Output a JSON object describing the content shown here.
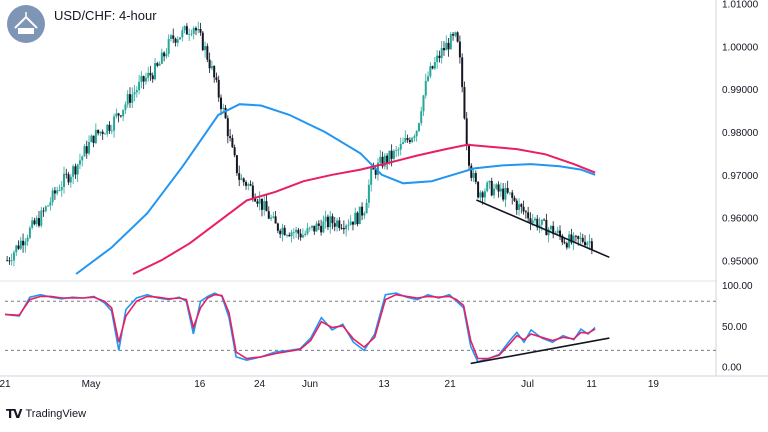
{
  "header": {
    "title": "USD/CHF: 4-hour"
  },
  "footer": {
    "brand": "TradingView"
  },
  "colors": {
    "up_candle": "#26a69a",
    "down_candle": "#131722",
    "ma_blue": "#2196f3",
    "ma_red": "#e91e63",
    "rsi_blue": "#2196f3",
    "rsi_red": "#e91e63"
  },
  "chart_data": [
    {
      "type": "candlestick",
      "title": "USD/CHF: 4-hour",
      "y_tick_labels": [
        "1.01000",
        "1.00000",
        "0.99000",
        "0.98000",
        "0.97000",
        "0.96000",
        "0.95000"
      ],
      "y_ticks": [
        1.01,
        1.0,
        0.99,
        0.98,
        0.97,
        0.96,
        0.95
      ],
      "ylim": [
        0.9468,
        1.0104
      ],
      "x_tick_labels": [
        "21",
        "May",
        "16",
        "24",
        "Jun",
        "13",
        "21",
        "Jul",
        "11",
        "19"
      ],
      "xlim": [
        0,
        100
      ],
      "x_ticks": [
        0,
        12.1,
        27.4,
        35.8,
        42.9,
        53.3,
        62.6,
        73.5,
        82.5,
        91.2
      ],
      "price_path": [
        [
          0.3,
          0.95
        ],
        [
          2.5,
          0.955
        ],
        [
          5,
          0.96
        ],
        [
          7.5,
          0.967
        ],
        [
          10,
          0.972
        ],
        [
          12.5,
          0.979
        ],
        [
          15,
          0.982
        ],
        [
          17.5,
          0.988
        ],
        [
          19.5,
          0.992
        ],
        [
          21.5,
          0.995
        ],
        [
          23.5,
          1.002
        ],
        [
          25,
          1.003
        ],
        [
          26.5,
          1.005
        ],
        [
          28,
          1.0
        ],
        [
          29,
          0.995
        ],
        [
          30,
          0.989
        ],
        [
          31,
          0.983
        ],
        [
          32,
          0.975
        ],
        [
          33,
          0.969
        ],
        [
          34,
          0.968
        ],
        [
          35,
          0.966
        ],
        [
          36.5,
          0.962
        ],
        [
          38,
          0.958
        ],
        [
          40,
          0.957
        ],
        [
          42,
          0.956
        ],
        [
          44,
          0.958
        ],
        [
          46,
          0.959
        ],
        [
          48,
          0.959
        ],
        [
          49.5,
          0.96
        ],
        [
          50.5,
          0.962
        ],
        [
          51.5,
          0.97
        ],
        [
          53,
          0.973
        ],
        [
          55,
          0.975
        ],
        [
          56.5,
          0.978
        ],
        [
          58,
          0.981
        ],
        [
          58.5,
          0.986
        ],
        [
          59.5,
          0.993
        ],
        [
          60.5,
          0.996
        ],
        [
          61.5,
          0.999
        ],
        [
          62.5,
          1.001
        ],
        [
          63.5,
          1.002
        ],
        [
          64,
          0.996
        ],
        [
          64.5,
          0.987
        ],
        [
          65,
          0.977
        ],
        [
          65.5,
          0.971
        ],
        [
          66.5,
          0.966
        ],
        [
          68,
          0.967
        ],
        [
          69.5,
          0.966
        ],
        [
          71,
          0.965
        ],
        [
          72.5,
          0.962
        ],
        [
          74,
          0.96
        ],
        [
          75.5,
          0.958
        ],
        [
          77,
          0.957
        ],
        [
          78.5,
          0.955
        ],
        [
          80,
          0.954
        ],
        [
          81.5,
          0.955
        ],
        [
          82.7,
          0.954
        ]
      ],
      "series": [
        {
          "color": "#2196f3",
          "points": [
            [
              10,
              0.9468
            ],
            [
              15,
              0.953
            ],
            [
              20,
              0.961
            ],
            [
              25,
              0.972
            ],
            [
              30,
              0.984
            ],
            [
              33,
              0.9865
            ],
            [
              36,
              0.9862
            ],
            [
              40,
              0.984
            ],
            [
              45,
              0.98
            ],
            [
              50,
              0.975
            ],
            [
              53,
              0.97
            ],
            [
              56,
              0.968
            ],
            [
              60,
              0.9685
            ],
            [
              63,
              0.97
            ],
            [
              66,
              0.9715
            ],
            [
              70,
              0.9722
            ],
            [
              74,
              0.9725
            ],
            [
              78,
              0.972
            ],
            [
              81,
              0.9712
            ],
            [
              83,
              0.97
            ]
          ]
        },
        {
          "color": "#e91e63",
          "points": [
            [
              18,
              0.9468
            ],
            [
              22,
              0.95
            ],
            [
              26,
              0.954
            ],
            [
              30,
              0.959
            ],
            [
              34,
              0.964
            ],
            [
              38,
              0.966
            ],
            [
              42,
              0.9685
            ],
            [
              46,
              0.97
            ],
            [
              50,
              0.9712
            ],
            [
              54,
              0.9728
            ],
            [
              58,
              0.9745
            ],
            [
              62,
              0.976
            ],
            [
              65,
              0.977
            ],
            [
              68,
              0.9766
            ],
            [
              72,
              0.976
            ],
            [
              76,
              0.9748
            ],
            [
              80,
              0.9725
            ],
            [
              83,
              0.9705
            ]
          ]
        }
      ],
      "trendline": {
        "points": [
          [
            66.3,
            0.9641
          ],
          [
            85.0,
            0.9507
          ]
        ],
        "color": "#131722"
      }
    },
    {
      "type": "line",
      "title": "",
      "y_tick_labels": [
        "100.00",
        "50.00",
        "0.00"
      ],
      "y_ticks": [
        100,
        50,
        0
      ],
      "ylim": [
        -4,
        106
      ],
      "dashed_levels": [
        80,
        20
      ],
      "xlim": [
        0,
        100
      ],
      "series": [
        {
          "color": "#2196f3",
          "points": [
            [
              0,
              64
            ],
            [
              2,
              62
            ],
            [
              3.5,
              85
            ],
            [
              5,
              88
            ],
            [
              6.5,
              85
            ],
            [
              8,
              83
            ],
            [
              9.5,
              85
            ],
            [
              11,
              84
            ],
            [
              12.5,
              86
            ],
            [
              14,
              78
            ],
            [
              15,
              68
            ],
            [
              16,
              20
            ],
            [
              17,
              70
            ],
            [
              18.5,
              84
            ],
            [
              20,
              88
            ],
            [
              21.5,
              84
            ],
            [
              23,
              82
            ],
            [
              24.5,
              85
            ],
            [
              25.5,
              80
            ],
            [
              26.5,
              40
            ],
            [
              27.5,
              80
            ],
            [
              28.5,
              86
            ],
            [
              29.5,
              90
            ],
            [
              30.5,
              86
            ],
            [
              31.5,
              60
            ],
            [
              32.5,
              12
            ],
            [
              34,
              8
            ],
            [
              36,
              12
            ],
            [
              38,
              18
            ],
            [
              40,
              20
            ],
            [
              41.5,
              22
            ],
            [
              43,
              35
            ],
            [
              44.5,
              60
            ],
            [
              46,
              45
            ],
            [
              47.5,
              52
            ],
            [
              49,
              30
            ],
            [
              50.5,
              20
            ],
            [
              52,
              40
            ],
            [
              53.5,
              88
            ],
            [
              55,
              90
            ],
            [
              56.5,
              85
            ],
            [
              58,
              82
            ],
            [
              59.5,
              88
            ],
            [
              61,
              84
            ],
            [
              62.5,
              88
            ],
            [
              63.5,
              80
            ],
            [
              64.5,
              72
            ],
            [
              65.5,
              25
            ],
            [
              66.5,
              6
            ],
            [
              68,
              10
            ],
            [
              69.5,
              15
            ],
            [
              71,
              32
            ],
            [
              72,
              42
            ],
            [
              73,
              30
            ],
            [
              74,
              45
            ],
            [
              75.5,
              35
            ],
            [
              77,
              30
            ],
            [
              78.5,
              38
            ],
            [
              80,
              33
            ],
            [
              81,
              46
            ],
            [
              82,
              40
            ],
            [
              83,
              48
            ]
          ]
        },
        {
          "color": "#e91e63",
          "points": [
            [
              0,
              64
            ],
            [
              2,
              63
            ],
            [
              3.5,
              82
            ],
            [
              5,
              86
            ],
            [
              6.5,
              86
            ],
            [
              8,
              84
            ],
            [
              9.5,
              84
            ],
            [
              11,
              84
            ],
            [
              12.5,
              85
            ],
            [
              14,
              80
            ],
            [
              15,
              72
            ],
            [
              16,
              30
            ],
            [
              17,
              62
            ],
            [
              18.5,
              80
            ],
            [
              20,
              86
            ],
            [
              21.5,
              85
            ],
            [
              23,
              83
            ],
            [
              24.5,
              84
            ],
            [
              25.5,
              82
            ],
            [
              26.5,
              48
            ],
            [
              27.5,
              72
            ],
            [
              28.5,
              84
            ],
            [
              29.5,
              88
            ],
            [
              30.5,
              87
            ],
            [
              31.5,
              66
            ],
            [
              32.5,
              18
            ],
            [
              34,
              10
            ],
            [
              36,
              12
            ],
            [
              38,
              16
            ],
            [
              40,
              19
            ],
            [
              41.5,
              21
            ],
            [
              43,
              32
            ],
            [
              44.5,
              55
            ],
            [
              46,
              48
            ],
            [
              47.5,
              50
            ],
            [
              49,
              34
            ],
            [
              50.5,
              24
            ],
            [
              52,
              36
            ],
            [
              53.5,
              82
            ],
            [
              55,
              88
            ],
            [
              56.5,
              86
            ],
            [
              58,
              84
            ],
            [
              59.5,
              86
            ],
            [
              61,
              85
            ],
            [
              62.5,
              86
            ],
            [
              63.5,
              82
            ],
            [
              64.5,
              75
            ],
            [
              65.5,
              32
            ],
            [
              66.5,
              10
            ],
            [
              68,
              10
            ],
            [
              69.5,
              14
            ],
            [
              71,
              28
            ],
            [
              72,
              38
            ],
            [
              73,
              33
            ],
            [
              74,
              40
            ],
            [
              75.5,
              36
            ],
            [
              77,
              32
            ],
            [
              78.5,
              36
            ],
            [
              80,
              34
            ],
            [
              81,
              42
            ],
            [
              82,
              41
            ],
            [
              83,
              46
            ]
          ]
        }
      ],
      "trendline": {
        "points": [
          [
            65.5,
            4
          ],
          [
            85.0,
            35
          ]
        ],
        "color": "#131722"
      }
    }
  ]
}
